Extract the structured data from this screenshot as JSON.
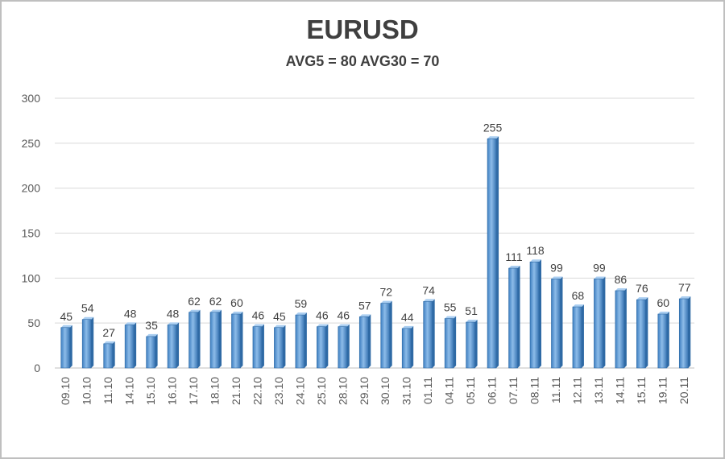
{
  "chart_data": {
    "type": "bar",
    "title": "EURUSD",
    "subtitle": "AVG5 = 80 AVG30 = 70",
    "xlabel": "",
    "ylabel": "",
    "ylim": [
      0,
      300
    ],
    "yticks": [
      "0",
      "50",
      "100",
      "150",
      "200",
      "250",
      "300"
    ],
    "grid": true,
    "bar_color": "#5b9bd5",
    "categories": [
      "09.10",
      "10.10",
      "11.10",
      "14.10",
      "15.10",
      "16.10",
      "17.10",
      "18.10",
      "21.10",
      "22.10",
      "23.10",
      "24.10",
      "25.10",
      "28.10",
      "29.10",
      "30.10",
      "31.10",
      "01.11",
      "04.11",
      "05.11",
      "06.11",
      "07.11",
      "08.11",
      "11.11",
      "12.11",
      "13.11",
      "14.11",
      "15.11",
      "19.11",
      "20.11"
    ],
    "values": [
      45,
      54,
      27,
      48,
      35,
      48,
      62,
      62,
      60,
      46,
      45,
      59,
      46,
      46,
      57,
      72,
      44,
      74,
      55,
      51,
      255,
      111,
      118,
      99,
      68,
      99,
      86,
      76,
      60,
      77
    ]
  }
}
